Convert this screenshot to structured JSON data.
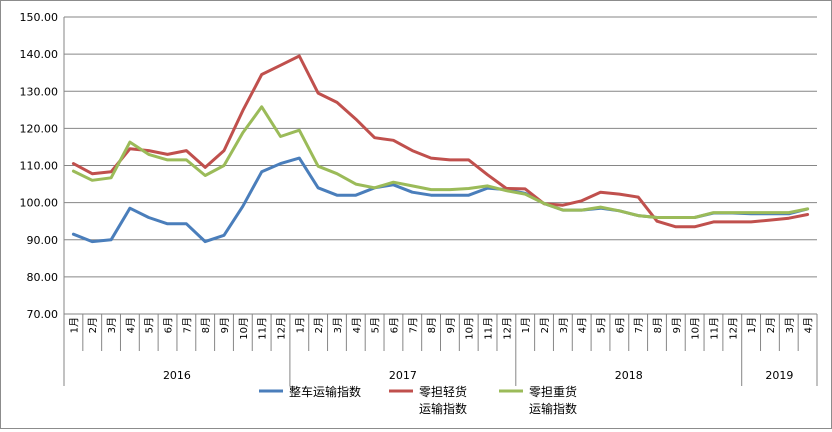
{
  "chart_data": {
    "type": "line",
    "title": "",
    "xlabel": "",
    "ylabel": "",
    "ylim": [
      70,
      150
    ],
    "yticks": [
      "70.00",
      "80.00",
      "90.00",
      "100.00",
      "110.00",
      "120.00",
      "130.00",
      "140.00",
      "150.00"
    ],
    "grid": "horizontal",
    "legend_position": "bottom",
    "categories": [
      "1月",
      "2月",
      "3月",
      "4月",
      "5月",
      "6月",
      "7月",
      "8月",
      "9月",
      "10月",
      "11月",
      "12月",
      "1月",
      "2月",
      "3月",
      "4月",
      "5月",
      "6月",
      "7月",
      "8月",
      "9月",
      "10月",
      "11月",
      "12月",
      "1月",
      "2月",
      "3月",
      "4月",
      "5月",
      "6月",
      "7月",
      "8月",
      "9月",
      "10月",
      "11月",
      "12月",
      "1月",
      "2月",
      "3月",
      "4月"
    ],
    "year_groups": [
      {
        "label": "2016",
        "count": 12
      },
      {
        "label": "2017",
        "count": 12
      },
      {
        "label": "2018",
        "count": 12
      },
      {
        "label": "2019",
        "count": 4
      }
    ],
    "series": [
      {
        "name": "整车运输指数",
        "color": "#4a7ebb",
        "values": [
          91.5,
          89.5,
          90.0,
          98.5,
          96.0,
          94.3,
          94.3,
          89.5,
          91.2,
          99.0,
          108.3,
          110.5,
          112.0,
          104.0,
          102.0,
          102.0,
          104.0,
          104.8,
          102.8,
          102.0,
          102.0,
          102.0,
          103.9,
          103.5,
          102.5,
          99.8,
          98.0,
          98.0,
          98.5,
          97.8,
          96.5,
          96.0,
          96.0,
          96.0,
          97.2,
          97.2,
          97.0,
          97.0,
          97.0,
          98.3
        ]
      },
      {
        "name": "零担轻货\n运输指数",
        "color": "#c0504d",
        "values": [
          110.5,
          107.8,
          108.3,
          114.5,
          114.0,
          113.0,
          114.0,
          109.5,
          114.0,
          124.8,
          134.5,
          137.0,
          139.5,
          129.5,
          127.0,
          122.5,
          117.5,
          116.8,
          114.0,
          112.0,
          111.5,
          111.5,
          107.5,
          103.8,
          103.7,
          99.7,
          99.3,
          100.5,
          102.8,
          102.3,
          101.5,
          95.0,
          93.5,
          93.5,
          94.8,
          94.8,
          94.8,
          95.3,
          95.8,
          96.8
        ]
      },
      {
        "name": "零担重货\n运输指数",
        "color": "#9bbb59",
        "values": [
          108.5,
          106.0,
          106.7,
          116.3,
          113.0,
          111.5,
          111.5,
          107.3,
          110.0,
          118.8,
          125.8,
          117.8,
          119.5,
          109.8,
          107.8,
          105.0,
          104.0,
          105.5,
          104.5,
          103.5,
          103.5,
          103.8,
          104.5,
          103.2,
          102.3,
          99.8,
          98.0,
          98.0,
          98.8,
          97.8,
          96.5,
          96.0,
          96.0,
          96.0,
          97.3,
          97.3,
          97.3,
          97.3,
          97.3,
          98.3
        ]
      }
    ]
  }
}
